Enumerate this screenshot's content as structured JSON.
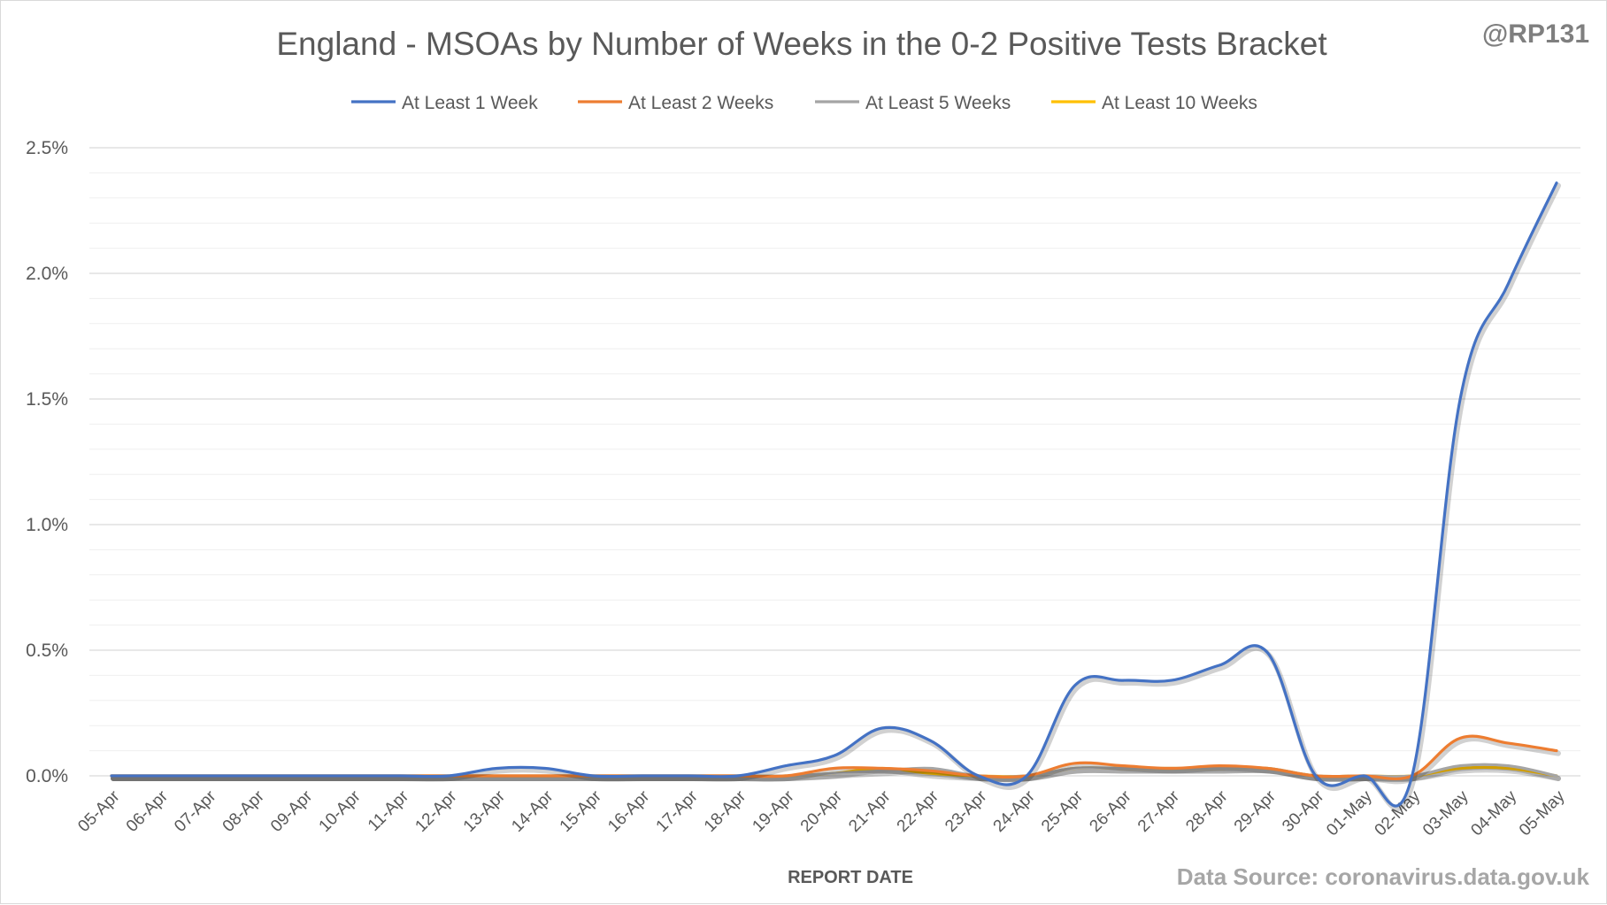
{
  "chart_data": {
    "type": "line",
    "title": "England - MSOAs by Number of Weeks in the 0-2 Positive Tests Bracket",
    "watermark": "@RP131",
    "source": "Data Source: coronavirus.data.gov.uk",
    "xlabel": "REPORT DATE",
    "ylabel": "",
    "ylim": [
      0,
      0.025
    ],
    "yticks": [
      0,
      0.005,
      0.01,
      0.015,
      0.02,
      0.025
    ],
    "ytick_labels": [
      "0.0%",
      "0.5%",
      "1.0%",
      "1.5%",
      "2.0%",
      "2.5%"
    ],
    "minor_gridlines": true,
    "legend_position": "top",
    "categories": [
      "05-Apr",
      "06-Apr",
      "07-Apr",
      "08-Apr",
      "09-Apr",
      "10-Apr",
      "11-Apr",
      "12-Apr",
      "13-Apr",
      "14-Apr",
      "15-Apr",
      "16-Apr",
      "17-Apr",
      "18-Apr",
      "19-Apr",
      "20-Apr",
      "21-Apr",
      "22-Apr",
      "23-Apr",
      "24-Apr",
      "25-Apr",
      "26-Apr",
      "27-Apr",
      "28-Apr",
      "29-Apr",
      "30-Apr",
      "01-May",
      "02-May",
      "03-May",
      "04-May",
      "05-May"
    ],
    "series": [
      {
        "name": "At Least 1 Week",
        "color": "#4472c4",
        "values": [
          0,
          0,
          0,
          0,
          0,
          0,
          0,
          0,
          0.0003,
          0.0003,
          0,
          0,
          0,
          0,
          0.0004,
          0.0008,
          0.0019,
          0.0014,
          0,
          0,
          0.0036,
          0.0038,
          0.0038,
          0.0044,
          0.0049,
          0,
          0,
          0,
          0.015,
          0.0196,
          0.0236
        ]
      },
      {
        "name": "At Least 2 Weeks",
        "color": "#ed7d31",
        "values": [
          0,
          0,
          0,
          0,
          0,
          0,
          0,
          0,
          0,
          0,
          0,
          0,
          0,
          0,
          0,
          0.0003,
          0.0003,
          0.0002,
          0,
          0,
          0.0005,
          0.0004,
          0.0003,
          0.0004,
          0.0003,
          0,
          0,
          0,
          0.0015,
          0.0013,
          0.001
        ]
      },
      {
        "name": "At Least 5 Weeks",
        "color": "#a5a5a5",
        "values": [
          0,
          0,
          0,
          0,
          0,
          0,
          0,
          0,
          0,
          0,
          0,
          0,
          0,
          0,
          0,
          0.0001,
          0.0002,
          0.0003,
          0,
          0,
          0.0003,
          0.0003,
          0.0003,
          0.0003,
          0.0003,
          0,
          0,
          0,
          0.0004,
          0.0004,
          0
        ]
      },
      {
        "name": "At Least 10 Weeks",
        "color": "#ffc000",
        "values": [
          0,
          0,
          0,
          0,
          0,
          0,
          0,
          0,
          0,
          0,
          0,
          0,
          0,
          0,
          0,
          0.0001,
          0.0003,
          0.0001,
          0,
          0,
          0.0003,
          0.0003,
          0.0003,
          0.0003,
          0.0003,
          0,
          0,
          0,
          0.0003,
          0.0003,
          0
        ]
      }
    ]
  }
}
